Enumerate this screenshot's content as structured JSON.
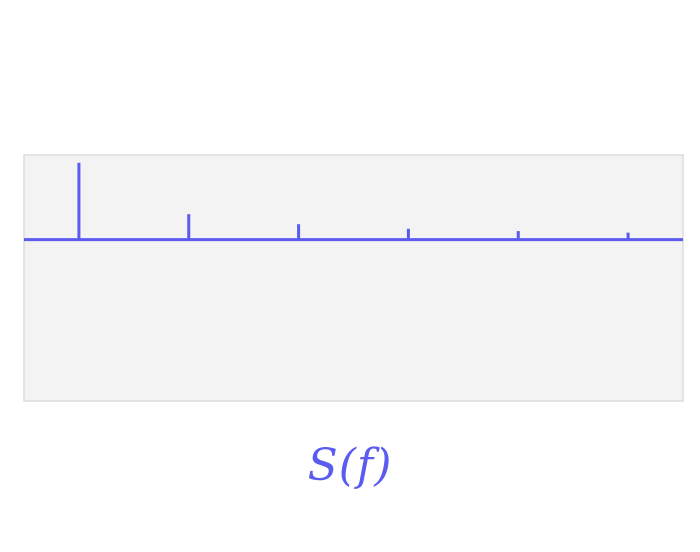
{
  "colors": {
    "accent": "#5b5bf0",
    "panel_bg": "#f3f3f3",
    "panel_border": "#dddddd",
    "caption": "#5b5bf0"
  },
  "caption": "S(f)",
  "chart_data": {
    "type": "bar",
    "subtype": "spectral-lines",
    "x": [
      1,
      2,
      3,
      4,
      5,
      6
    ],
    "values": [
      1.0,
      0.33,
      0.2,
      0.14,
      0.11,
      0.09
    ],
    "xlim": [
      0.5,
      6.5
    ],
    "ylim": [
      -2.1,
      1.1
    ],
    "baseline": 0,
    "grid": false,
    "legend": "none",
    "title": "",
    "xlabel": "",
    "ylabel": ""
  }
}
